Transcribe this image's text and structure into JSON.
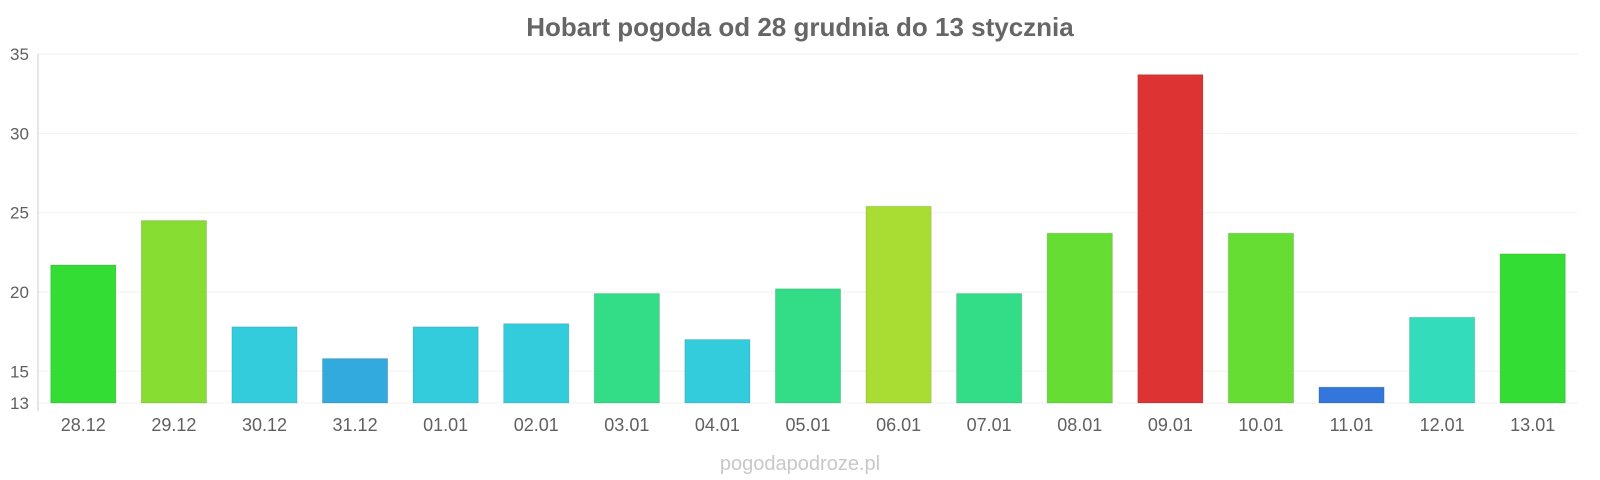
{
  "chart_data": {
    "type": "bar",
    "title": "Hobart pogoda od 28 grudnia do 13 stycznia",
    "xlabel": "",
    "ylabel": "",
    "ylim": [
      13,
      35
    ],
    "yticks": [
      13,
      15,
      20,
      25,
      30,
      35
    ],
    "grid": true,
    "legend": "none",
    "categories": [
      "28.12",
      "29.12",
      "30.12",
      "31.12",
      "01.01",
      "02.01",
      "03.01",
      "04.01",
      "05.01",
      "06.01",
      "07.01",
      "08.01",
      "09.01",
      "10.01",
      "11.01",
      "12.01",
      "13.01"
    ],
    "values": [
      21.7,
      24.5,
      17.8,
      15.8,
      17.8,
      18.0,
      19.9,
      17.0,
      20.2,
      25.4,
      19.9,
      23.7,
      33.7,
      23.7,
      14.0,
      18.4,
      22.4
    ],
    "colors": [
      "#33dd33",
      "#88dd33",
      "#33ccdd",
      "#33aadd",
      "#33ccdd",
      "#33ccdd",
      "#33dd88",
      "#33ccdd",
      "#33dd88",
      "#aadd33",
      "#33dd88",
      "#66dd33",
      "#dd3333",
      "#66dd33",
      "#3377dd",
      "#33ddbb",
      "#33dd33"
    ]
  },
  "credit": "pogodapodroze.pl"
}
